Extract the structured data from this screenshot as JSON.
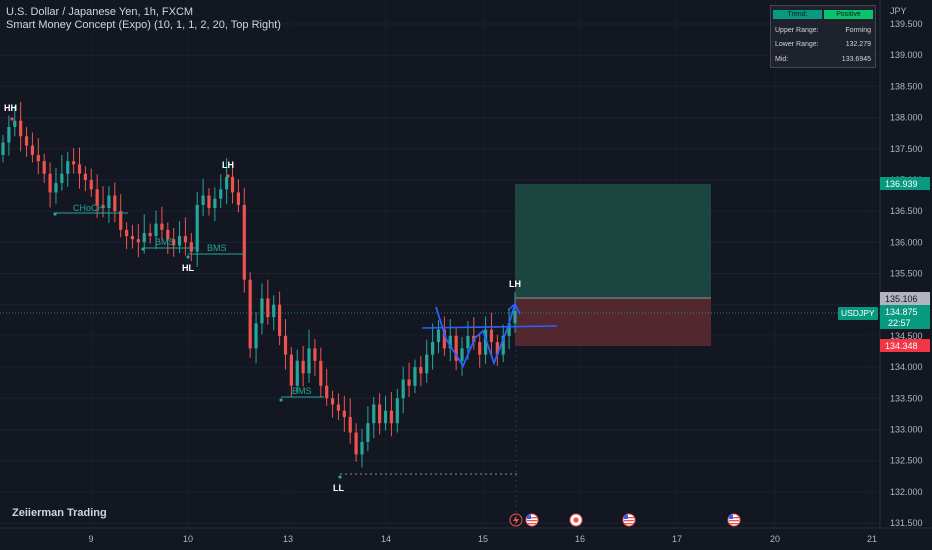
{
  "header": {
    "symbol_line": "U.S. Dollar / Japanese Yen, 1h, FXCM",
    "indicator_line": "Smart Money Concept (Expo) (10, 1, 1, 2, 20, Top Right)"
  },
  "watermark": "Zeiierman Trading",
  "smc_table": {
    "trend_label": "Trend:",
    "trend_value": "Positive",
    "upper_label": "Upper Range:",
    "upper_value": "Forming",
    "lower_label": "Lower Range:",
    "lower_value": "132.279",
    "mid_label": "Mid:",
    "mid_value": "133.6945"
  },
  "price_axis": {
    "currency": "JPY",
    "ticks": [
      "139.500",
      "139.000",
      "138.500",
      "138.000",
      "137.500",
      "137.000",
      "136.500",
      "136.000",
      "135.500",
      "135.000",
      "134.500",
      "134.000",
      "133.500",
      "133.000",
      "132.500",
      "132.000",
      "131.500"
    ],
    "target_price": "136.939",
    "entry_price": "135.106",
    "last_price": "134.875",
    "countdown": "22:57",
    "stop_price": "134.348",
    "symbol_tag": "USDJPY"
  },
  "time_axis": {
    "ticks": [
      "9",
      "10",
      "13",
      "14",
      "15",
      "16",
      "17",
      "20",
      "21"
    ]
  },
  "annotations": {
    "hh": "HH",
    "lh1": "LH",
    "hl": "HL",
    "ll": "LL",
    "lh2": "LH",
    "choch": "CHoCH",
    "bms1": "BMS",
    "bms2": "BMS",
    "bms3": "BMS"
  },
  "colors": {
    "background": "#131722",
    "up_candle": "#26a69a",
    "down_candle": "#ef5350",
    "target_zone": "#1e4d45",
    "stop_zone": "#5a2a30",
    "structure_line": "#26a69a",
    "pattern_line": "#2962ff"
  },
  "event_icons": [
    "lightning-icon",
    "us-flag-icon",
    "jp-flag-icon",
    "us-flag-icon",
    "us-flag-icon"
  ],
  "chart_data": {
    "type": "candlestick",
    "symbol": "USDJPY",
    "interval": "1h",
    "ylim": [
      131.5,
      139.5
    ],
    "x_ticks": [
      "9",
      "10",
      "13",
      "14",
      "15",
      "16",
      "17",
      "20",
      "21"
    ],
    "key_levels": {
      "hh": 137.98,
      "lh": 137.05,
      "hl": 135.75,
      "ll": 132.25,
      "lh2": 135.14,
      "choch": 136.45,
      "bms_1": 135.96,
      "bms_2": 135.9,
      "bms_3": 133.47,
      "neckline": 134.32,
      "target": 136.939,
      "entry": 135.106,
      "stop": 134.348,
      "last": 134.875
    },
    "closes": [
      137.6,
      137.85,
      137.95,
      137.7,
      137.55,
      137.4,
      137.3,
      137.1,
      136.8,
      136.95,
      137.1,
      137.3,
      137.25,
      137.1,
      137.0,
      136.85,
      136.6,
      136.55,
      136.75,
      136.5,
      136.2,
      136.1,
      136.05,
      136.0,
      136.15,
      136.1,
      136.3,
      136.2,
      136.05,
      135.95,
      136.1,
      136.0,
      135.85,
      136.6,
      136.75,
      136.55,
      136.7,
      136.85,
      137.05,
      136.8,
      136.6,
      135.4,
      134.3,
      134.7,
      135.1,
      134.8,
      135.0,
      134.5,
      134.2,
      133.7,
      134.1,
      133.9,
      134.3,
      134.1,
      133.7,
      133.5,
      133.4,
      133.3,
      133.2,
      132.95,
      132.6,
      132.8,
      133.1,
      133.4,
      133.1,
      133.3,
      133.1,
      133.5,
      133.8,
      133.7,
      134.0,
      133.9,
      134.2,
      134.4,
      134.6,
      134.3,
      134.5,
      134.1,
      134.3,
      134.5,
      134.4,
      134.2,
      134.6,
      134.4,
      134.2,
      134.5,
      134.7,
      134.9
    ]
  }
}
